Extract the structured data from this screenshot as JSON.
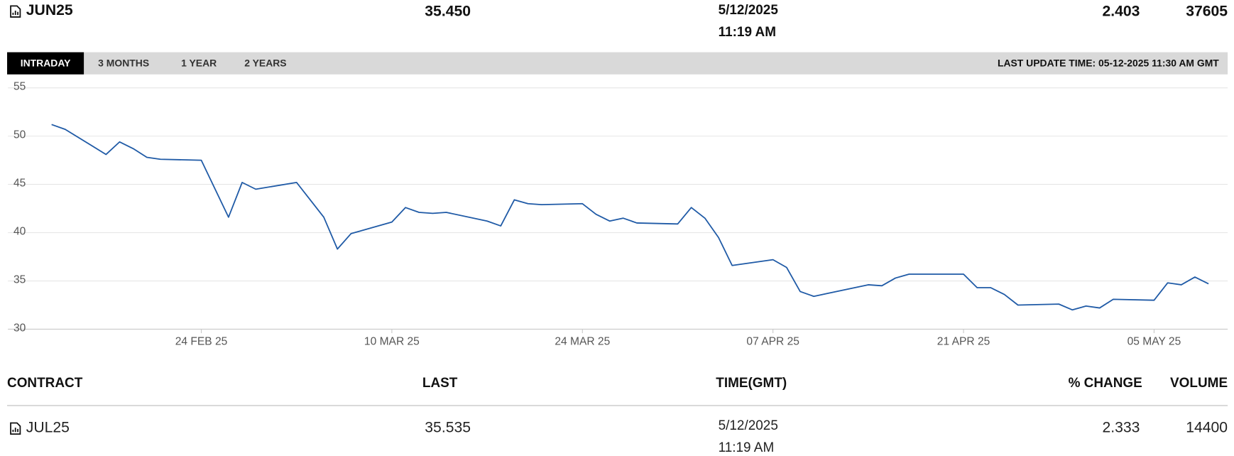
{
  "quote": {
    "contract": "JUN25",
    "last": "35.450",
    "date": "5/12/2025",
    "time": "11:19 AM",
    "change": "2.403",
    "volume": "37605"
  },
  "tabs": [
    "INTRADAY",
    "3 MONTHS",
    "1 YEAR",
    "2 YEARS"
  ],
  "last_update": "LAST UPDATE TIME: 05-12-2025 11:30 AM GMT",
  "chart_data": {
    "type": "line",
    "x": [
      "2025-02-13",
      "2025-02-14",
      "2025-02-17",
      "2025-02-18",
      "2025-02-19",
      "2025-02-20",
      "2025-02-21",
      "2025-02-24",
      "2025-02-26",
      "2025-02-27",
      "2025-02-28",
      "2025-03-03",
      "2025-03-04",
      "2025-03-05",
      "2025-03-06",
      "2025-03-07",
      "2025-03-10",
      "2025-03-11",
      "2025-03-12",
      "2025-03-13",
      "2025-03-14",
      "2025-03-17",
      "2025-03-18",
      "2025-03-19",
      "2025-03-20",
      "2025-03-21",
      "2025-03-24",
      "2025-03-25",
      "2025-03-26",
      "2025-03-27",
      "2025-03-28",
      "2025-03-31",
      "2025-04-01",
      "2025-04-02",
      "2025-04-03",
      "2025-04-04",
      "2025-04-07",
      "2025-04-08",
      "2025-04-09",
      "2025-04-10",
      "2025-04-11",
      "2025-04-14",
      "2025-04-15",
      "2025-04-16",
      "2025-04-17",
      "2025-04-21",
      "2025-04-22",
      "2025-04-23",
      "2025-04-24",
      "2025-04-25",
      "2025-04-28",
      "2025-04-29",
      "2025-04-30",
      "2025-05-01",
      "2025-05-02",
      "2025-05-05",
      "2025-05-06",
      "2025-05-07",
      "2025-05-08",
      "2025-05-09"
    ],
    "series": [
      {
        "color": "#1f5aa6",
        "values": [
          51.2,
          50.7,
          48.1,
          49.4,
          48.7,
          47.8,
          47.6,
          47.5,
          41.6,
          45.2,
          44.5,
          45.2,
          43.4,
          41.6,
          38.3,
          39.9,
          41.1,
          42.6,
          42.1,
          42.0,
          42.1,
          41.2,
          40.7,
          43.4,
          43.0,
          42.9,
          43.0,
          41.9,
          41.2,
          41.5,
          41.0,
          40.9,
          42.6,
          41.5,
          39.5,
          36.6,
          37.2,
          36.4,
          33.9,
          33.4,
          33.7,
          34.6,
          34.5,
          35.3,
          35.7,
          35.7,
          34.3,
          34.3,
          33.6,
          32.5,
          32.6,
          32.0,
          32.4,
          32.2,
          33.1,
          33.0,
          34.8,
          34.6,
          35.4,
          34.7
        ]
      }
    ],
    "xlim": [
      "2025-02-12",
      "2025-05-10"
    ],
    "xticks": [
      {
        "value": "2025-02-24",
        "label": "24 FEB 25"
      },
      {
        "value": "2025-03-10",
        "label": "10 MAR 25"
      },
      {
        "value": "2025-03-24",
        "label": "24 MAR 25"
      },
      {
        "value": "2025-04-07",
        "label": "07 APR 25"
      },
      {
        "value": "2025-04-21",
        "label": "21 APR 25"
      },
      {
        "value": "2025-05-05",
        "label": "05 MAY 25"
      }
    ],
    "ylim": [
      30,
      55
    ],
    "yticks": [
      30,
      35,
      40,
      45,
      50,
      55
    ],
    "grid": true
  },
  "table": {
    "columns": [
      "CONTRACT",
      "LAST",
      "TIME(GMT)",
      "% CHANGE",
      "VOLUME"
    ],
    "rows": [
      {
        "contract": "JUL25",
        "last": "35.535",
        "date": "5/12/2025",
        "time": "11:19 AM",
        "change": "2.333",
        "volume": "14400"
      }
    ]
  }
}
